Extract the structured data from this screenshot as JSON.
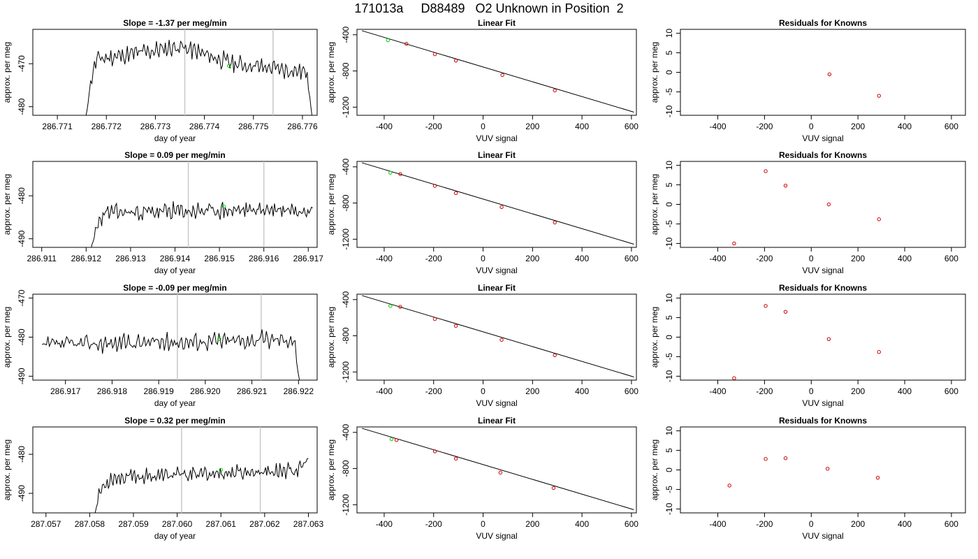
{
  "page_title": "171013a     D88489   O2 Unknown in Position  2",
  "colors": {
    "trace": "#000000",
    "vline": "#c8c8c8",
    "unknown": "#00cc00",
    "known": "#cc0000"
  },
  "chart_data": [
    {
      "type": "line",
      "row": 0,
      "panel": "timeseries",
      "title": "Slope =  -1.37  per meg/min",
      "xlabel": "day of year",
      "ylabel": "approx. per meg",
      "xlim": [
        286.7705,
        286.7763
      ],
      "ylim": [
        -482,
        -462
      ],
      "xticks": [
        "286.771",
        "286.772",
        "286.773",
        "286.774",
        "286.775",
        "286.776"
      ],
      "yticks": [
        "-470",
        "-480"
      ],
      "vlines": [
        286.7736,
        286.7754
      ],
      "trace": {
        "x_start": 286.77155,
        "x_end": 286.7762,
        "base": -467.5,
        "amp": 1.8,
        "seed": 11,
        "trend": [
          [
            286.77155,
            -485
          ],
          [
            286.7717,
            -473
          ],
          [
            286.7718,
            -469
          ],
          [
            286.7735,
            -466
          ],
          [
            286.7746,
            -470
          ],
          [
            286.7761,
            -472
          ],
          [
            286.7762,
            -483
          ]
        ]
      },
      "unknown_point": [
        286.7745,
        -470.5
      ]
    },
    {
      "type": "scatter",
      "row": 0,
      "panel": "fit",
      "title": "Linear Fit",
      "xlabel": "VUV signal",
      "ylabel": "approx. per meg",
      "xlim": [
        -510,
        620
      ],
      "ylim": [
        -1290,
        -340
      ],
      "xticks": [
        -400,
        -200,
        0,
        200,
        400,
        600
      ],
      "yticks": [
        -400,
        -800,
        -1200
      ],
      "line": [
        [
          -490,
          -355
        ],
        [
          610,
          -1255
        ]
      ],
      "knowns": [
        [
          -310,
          -500
        ],
        [
          -195,
          -615
        ],
        [
          -110,
          -685
        ],
        [
          78,
          -845
        ],
        [
          290,
          -1015
        ]
      ],
      "unknown_point": [
        -385,
        -460
      ]
    },
    {
      "type": "scatter",
      "row": 0,
      "panel": "residuals",
      "title": "Residuals for Knowns",
      "xlabel": "VUV signal",
      "ylabel": "approx. per meg",
      "xlim": [
        -560,
        660
      ],
      "ylim": [
        -11,
        11
      ],
      "xticks": [
        -400,
        -200,
        0,
        200,
        400,
        600
      ],
      "yticks": [
        10,
        5,
        0,
        -5,
        -10
      ],
      "points": [
        [
          78,
          -0.5
        ],
        [
          290,
          -6
        ]
      ]
    },
    {
      "type": "line",
      "row": 1,
      "panel": "timeseries",
      "title": "Slope =  0.09  per meg/min",
      "xlabel": "day of year",
      "ylabel": "approx. per meg",
      "xlim": [
        286.9108,
        286.9172
      ],
      "ylim": [
        -492,
        -472
      ],
      "xticks": [
        "286.911",
        "286.912",
        "286.913",
        "286.914",
        "286.915",
        "286.916",
        "286.917"
      ],
      "yticks": [
        "-480",
        "-490"
      ],
      "vlines": [
        286.9143,
        286.916
      ],
      "trace": {
        "x_start": 286.9121,
        "x_end": 286.9171,
        "base": -483.5,
        "amp": 1.8,
        "seed": 23,
        "trend": [
          [
            286.9121,
            -493
          ],
          [
            286.91225,
            -487
          ],
          [
            286.9124,
            -484
          ],
          [
            286.9171,
            -483
          ]
        ]
      },
      "unknown_point": [
        286.9151,
        -482.5
      ]
    },
    {
      "type": "scatter",
      "row": 1,
      "panel": "fit",
      "title": "Linear Fit",
      "xlabel": "VUV signal",
      "ylabel": "approx. per meg",
      "xlim": [
        -510,
        620
      ],
      "ylim": [
        -1290,
        -340
      ],
      "xticks": [
        -400,
        -200,
        0,
        200,
        400,
        600
      ],
      "yticks": [
        -400,
        -800,
        -1200
      ],
      "line": [
        [
          -490,
          -355
        ],
        [
          610,
          -1255
        ]
      ],
      "knowns": [
        [
          -335,
          -480
        ],
        [
          -195,
          -610
        ],
        [
          -110,
          -690
        ],
        [
          75,
          -845
        ],
        [
          290,
          -1015
        ]
      ],
      "unknown_point": [
        -375,
        -465
      ]
    },
    {
      "type": "scatter",
      "row": 1,
      "panel": "residuals",
      "title": "Residuals for Knowns",
      "xlabel": "VUV signal",
      "ylabel": "approx. per meg",
      "xlim": [
        -560,
        660
      ],
      "ylim": [
        -11,
        11
      ],
      "xticks": [
        -400,
        -200,
        0,
        200,
        400,
        600
      ],
      "yticks": [
        10,
        5,
        0,
        -5,
        -10
      ],
      "points": [
        [
          -330,
          -10
        ],
        [
          -195,
          8.5
        ],
        [
          -110,
          4.8
        ],
        [
          75,
          0
        ],
        [
          290,
          -3.8
        ]
      ]
    },
    {
      "type": "line",
      "row": 2,
      "panel": "timeseries",
      "title": "Slope =  -0.09  per meg/min",
      "xlabel": "day of year",
      "ylabel": "approx. per meg",
      "xlim": [
        286.9163,
        286.9224
      ],
      "ylim": [
        -491,
        -469
      ],
      "xticks": [
        "286.917",
        "286.918",
        "286.919",
        "286.920",
        "286.921",
        "286.922"
      ],
      "yticks": [
        "-470",
        "-480",
        "-490"
      ],
      "vlines": [
        286.9194,
        286.9212
      ],
      "trace": {
        "x_start": 286.9165,
        "x_end": 286.92205,
        "base": -480.5,
        "amp": 2.0,
        "seed": 37,
        "trend": [
          [
            286.9165,
            -482
          ],
          [
            286.9219,
            -480.5
          ],
          [
            286.92205,
            -494
          ]
        ]
      },
      "unknown_point": [
        286.9203,
        -480.5
      ]
    },
    {
      "type": "scatter",
      "row": 2,
      "panel": "fit",
      "title": "Linear Fit",
      "xlabel": "VUV signal",
      "ylabel": "approx. per meg",
      "xlim": [
        -510,
        620
      ],
      "ylim": [
        -1290,
        -340
      ],
      "xticks": [
        -400,
        -200,
        0,
        200,
        400,
        600
      ],
      "yticks": [
        -400,
        -800,
        -1200
      ],
      "line": [
        [
          -490,
          -355
        ],
        [
          610,
          -1255
        ]
      ],
      "knowns": [
        [
          -335,
          -480
        ],
        [
          -195,
          -615
        ],
        [
          -110,
          -690
        ],
        [
          75,
          -845
        ],
        [
          290,
          -1015
        ]
      ],
      "unknown_point": [
        -375,
        -470
      ]
    },
    {
      "type": "scatter",
      "row": 2,
      "panel": "residuals",
      "title": "Residuals for Knowns",
      "xlabel": "VUV signal",
      "ylabel": "approx. per meg",
      "xlim": [
        -560,
        660
      ],
      "ylim": [
        -11,
        11
      ],
      "xticks": [
        -400,
        -200,
        0,
        200,
        400,
        600
      ],
      "yticks": [
        10,
        5,
        0,
        -5,
        -10
      ],
      "points": [
        [
          -330,
          -10.5
        ],
        [
          -195,
          8
        ],
        [
          -110,
          6.5
        ],
        [
          75,
          -0.5
        ],
        [
          290,
          -3.8
        ]
      ]
    },
    {
      "type": "line",
      "row": 3,
      "panel": "timeseries",
      "title": "Slope =  0.32  per meg/min",
      "xlabel": "day of year",
      "ylabel": "approx. per meg",
      "xlim": [
        287.0567,
        287.0632
      ],
      "ylim": [
        -495,
        -473
      ],
      "xticks": [
        "287.057",
        "287.058",
        "287.059",
        "287.060",
        "287.061",
        "287.062",
        "287.063"
      ],
      "yticks": [
        "-480",
        "-490"
      ],
      "vlines": [
        287.0601,
        287.0619
      ],
      "trace": {
        "x_start": 287.0581,
        "x_end": 287.063,
        "base": -485,
        "amp": 1.7,
        "seed": 53,
        "trend": [
          [
            287.0581,
            -496
          ],
          [
            287.05825,
            -489
          ],
          [
            287.0585,
            -486
          ],
          [
            287.0628,
            -484
          ],
          [
            287.063,
            -481
          ]
        ]
      },
      "unknown_point": [
        287.061,
        -484
      ]
    },
    {
      "type": "scatter",
      "row": 3,
      "panel": "fit",
      "title": "Linear Fit",
      "xlabel": "VUV signal",
      "ylabel": "approx. per meg",
      "xlim": [
        -510,
        620
      ],
      "ylim": [
        -1290,
        -340
      ],
      "xticks": [
        -400,
        -200,
        0,
        200,
        400,
        600
      ],
      "yticks": [
        -400,
        -800,
        -1200
      ],
      "line": [
        [
          -490,
          -355
        ],
        [
          610,
          -1255
        ]
      ],
      "knowns": [
        [
          -350,
          -485
        ],
        [
          -195,
          -610
        ],
        [
          -110,
          -690
        ],
        [
          70,
          -845
        ],
        [
          285,
          -1015
        ]
      ],
      "unknown_point": [
        -370,
        -475
      ]
    },
    {
      "type": "scatter",
      "row": 3,
      "panel": "residuals",
      "title": "Residuals for Knowns",
      "xlabel": "VUV signal",
      "ylabel": "approx. per meg",
      "xlim": [
        -560,
        660
      ],
      "ylim": [
        -11,
        11
      ],
      "xticks": [
        -400,
        -200,
        0,
        200,
        400,
        600
      ],
      "yticks": [
        10,
        5,
        0,
        -5,
        -10
      ],
      "points": [
        [
          -350,
          -4
        ],
        [
          -195,
          2.8
        ],
        [
          -110,
          3
        ],
        [
          70,
          0.3
        ],
        [
          285,
          -2
        ]
      ]
    }
  ]
}
